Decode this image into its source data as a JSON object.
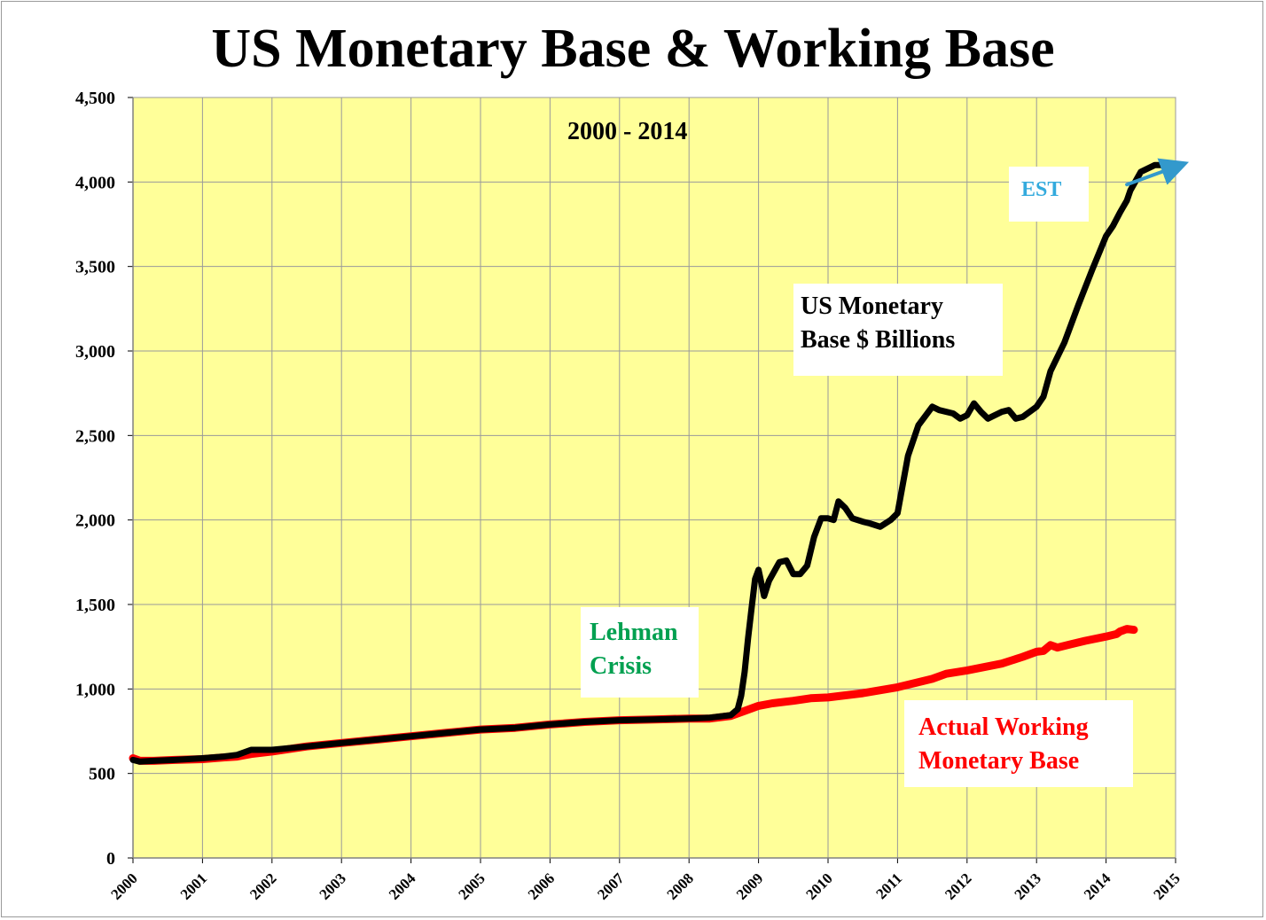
{
  "title": "US Monetary Base & Working Base",
  "chart_data": {
    "type": "line",
    "subtitle": "2000 - 2014",
    "xlabel": "",
    "ylabel": "",
    "xlim": [
      2000,
      2015
    ],
    "ylim": [
      0,
      4500
    ],
    "x_ticks": [
      "2000",
      "2001",
      "2002",
      "2003",
      "2004",
      "2005",
      "2006",
      "2007",
      "2008",
      "2009",
      "2010",
      "2011",
      "2012",
      "2013",
      "2014",
      "2015"
    ],
    "y_ticks": [
      {
        "value": 0,
        "label": "0"
      },
      {
        "value": 500,
        "label": "500"
      },
      {
        "value": 1000,
        "label": "1,000"
      },
      {
        "value": 1500,
        "label": "1,500"
      },
      {
        "value": 2000,
        "label": "2,000"
      },
      {
        "value": 2500,
        "label": "2,500"
      },
      {
        "value": 3000,
        "label": "3,000"
      },
      {
        "value": 3500,
        "label": "3,500"
      },
      {
        "value": 4000,
        "label": "4,000"
      },
      {
        "value": 4500,
        "label": "4,500"
      }
    ],
    "grid": true,
    "background_color": "#ffff99",
    "series": [
      {
        "name": "US Monetary Base $ Billions",
        "color": "#000000",
        "x": [
          2000.0,
          2000.1,
          2000.3,
          2000.6,
          2001.0,
          2001.3,
          2001.5,
          2001.7,
          2002.0,
          2002.5,
          2003.0,
          2003.5,
          2004.0,
          2004.5,
          2005.0,
          2005.5,
          2006.0,
          2006.5,
          2007.0,
          2007.5,
          2008.0,
          2008.3,
          2008.6,
          2008.7,
          2008.75,
          2008.8,
          2008.85,
          2008.9,
          2008.95,
          2009.0,
          2009.08,
          2009.15,
          2009.3,
          2009.4,
          2009.5,
          2009.6,
          2009.7,
          2009.8,
          2009.9,
          2010.0,
          2010.08,
          2010.15,
          2010.25,
          2010.35,
          2010.5,
          2010.6,
          2010.75,
          2010.9,
          2011.0,
          2011.15,
          2011.3,
          2011.5,
          2011.6,
          2011.8,
          2011.9,
          2012.0,
          2012.1,
          2012.2,
          2012.3,
          2012.5,
          2012.6,
          2012.7,
          2012.8,
          2013.0,
          2013.1,
          2013.2,
          2013.4,
          2013.6,
          2013.8,
          2014.0,
          2014.1,
          2014.2,
          2014.3,
          2014.35,
          2014.5,
          2014.7,
          2014.85,
          2015.0
        ],
        "values": [
          580,
          570,
          575,
          580,
          590,
          600,
          610,
          640,
          640,
          660,
          680,
          700,
          720,
          740,
          760,
          770,
          790,
          805,
          815,
          820,
          825,
          830,
          845,
          880,
          960,
          1100,
          1300,
          1480,
          1650,
          1705,
          1550,
          1640,
          1750,
          1760,
          1680,
          1680,
          1730,
          1900,
          2010,
          2010,
          2000,
          2110,
          2070,
          2010,
          1990,
          1980,
          1960,
          2000,
          2040,
          2380,
          2560,
          2670,
          2650,
          2630,
          2600,
          2620,
          2690,
          2640,
          2600,
          2640,
          2650,
          2600,
          2610,
          2670,
          2730,
          2880,
          3050,
          3270,
          3480,
          3680,
          3740,
          3820,
          3890,
          3950,
          4060,
          4100,
          4100,
          4100
        ]
      },
      {
        "name": "Actual Working Monetary Base",
        "color": "#ff0000",
        "x": [
          2000.0,
          2000.1,
          2000.3,
          2000.6,
          2001.0,
          2001.3,
          2001.5,
          2001.7,
          2002.0,
          2002.5,
          2003.0,
          2003.5,
          2004.0,
          2004.5,
          2005.0,
          2005.5,
          2006.0,
          2006.5,
          2007.0,
          2007.5,
          2008.0,
          2008.3,
          2008.6,
          2008.8,
          2009.0,
          2009.2,
          2009.5,
          2009.75,
          2010.0,
          2010.5,
          2011.0,
          2011.5,
          2011.7,
          2012.0,
          2012.5,
          2012.8,
          2013.0,
          2013.1,
          2013.2,
          2013.3,
          2013.5,
          2013.7,
          2014.0,
          2014.15,
          2014.2,
          2014.3,
          2014.4
        ],
        "values": [
          590,
          575,
          575,
          580,
          585,
          595,
          600,
          615,
          630,
          660,
          680,
          700,
          720,
          740,
          760,
          770,
          790,
          805,
          815,
          820,
          825,
          825,
          840,
          870,
          900,
          915,
          930,
          945,
          950,
          975,
          1010,
          1060,
          1090,
          1110,
          1150,
          1190,
          1220,
          1225,
          1260,
          1245,
          1265,
          1285,
          1310,
          1325,
          1340,
          1355,
          1350
        ]
      },
      {
        "name": "EST",
        "color": "#3399cc",
        "x": [
          2014.3,
          2015.0
        ],
        "values": [
          3985,
          4090
        ]
      }
    ],
    "annotations": [
      {
        "text": "2000 - 2014",
        "color": "#000000"
      },
      {
        "text": "EST",
        "color": "#33aadd"
      },
      {
        "text": "US Monetary",
        "color": "#000000"
      },
      {
        "text": "Base $ Billions",
        "color": "#000000"
      },
      {
        "text": "Lehman",
        "color": "#00a050"
      },
      {
        "text": "Crisis",
        "color": "#00a050"
      },
      {
        "text": "Actual Working",
        "color": "#ff0000"
      },
      {
        "text": "Monetary Base",
        "color": "#ff0000"
      }
    ]
  }
}
